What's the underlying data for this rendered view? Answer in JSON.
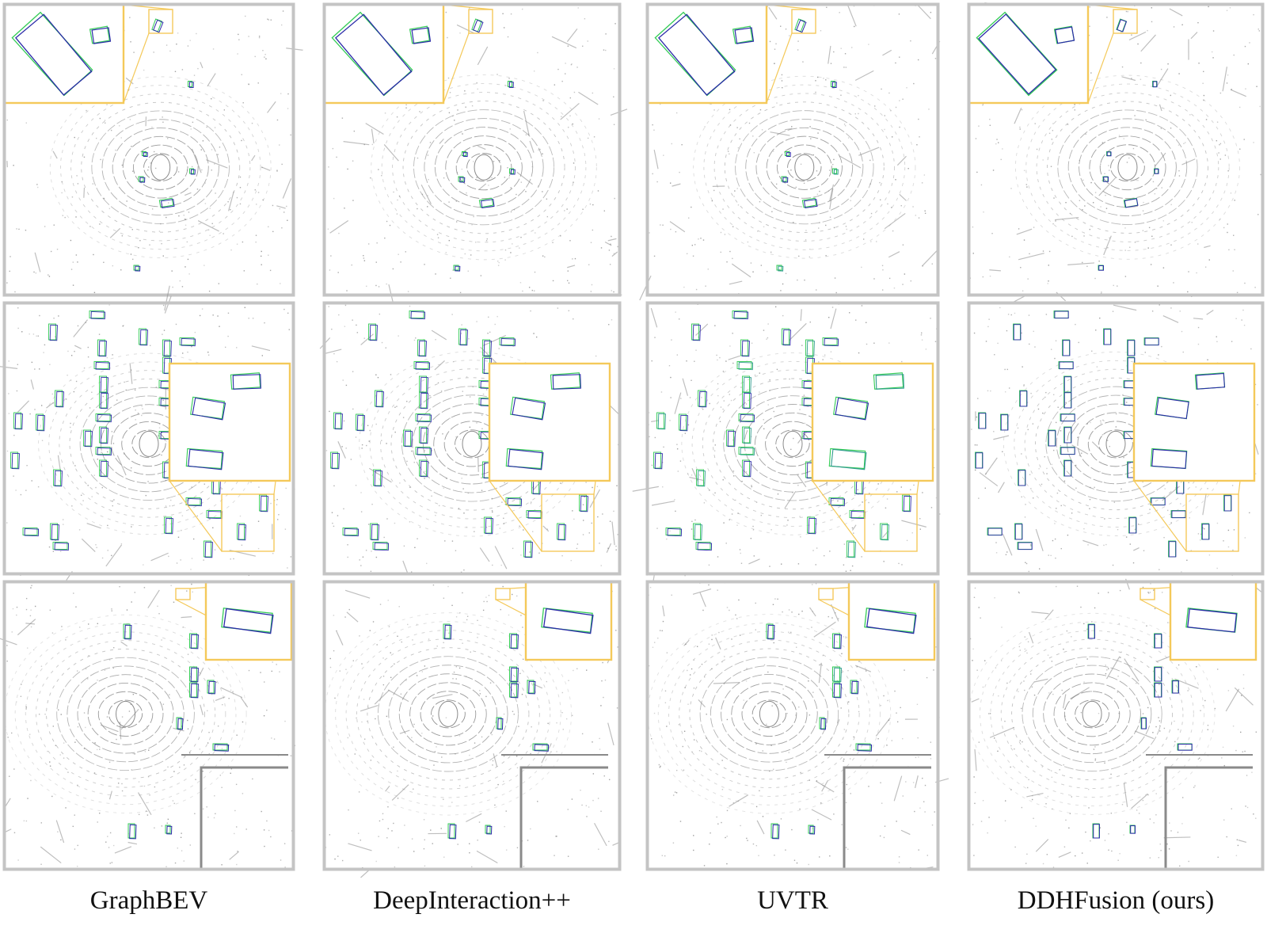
{
  "figure": {
    "methods": [
      {
        "label": "GraphBEV",
        "key": "graphbev"
      },
      {
        "label": "DeepInteraction++",
        "key": "deepinteraction"
      },
      {
        "label": "UVTR",
        "key": "uvtr"
      },
      {
        "label": "DDHFusion (ours)",
        "key": "ddhfusion"
      }
    ],
    "scenes": [
      {
        "key": "scene-1"
      },
      {
        "key": "scene-2"
      },
      {
        "key": "scene-3"
      }
    ]
  },
  "colors": {
    "panel_border": "#c4c4c4",
    "zoom_border": "#f4c95a",
    "ground_truth_box": "#33cc55",
    "prediction_box": "#2a2aa8",
    "point_cloud": "#8a8a8a"
  }
}
